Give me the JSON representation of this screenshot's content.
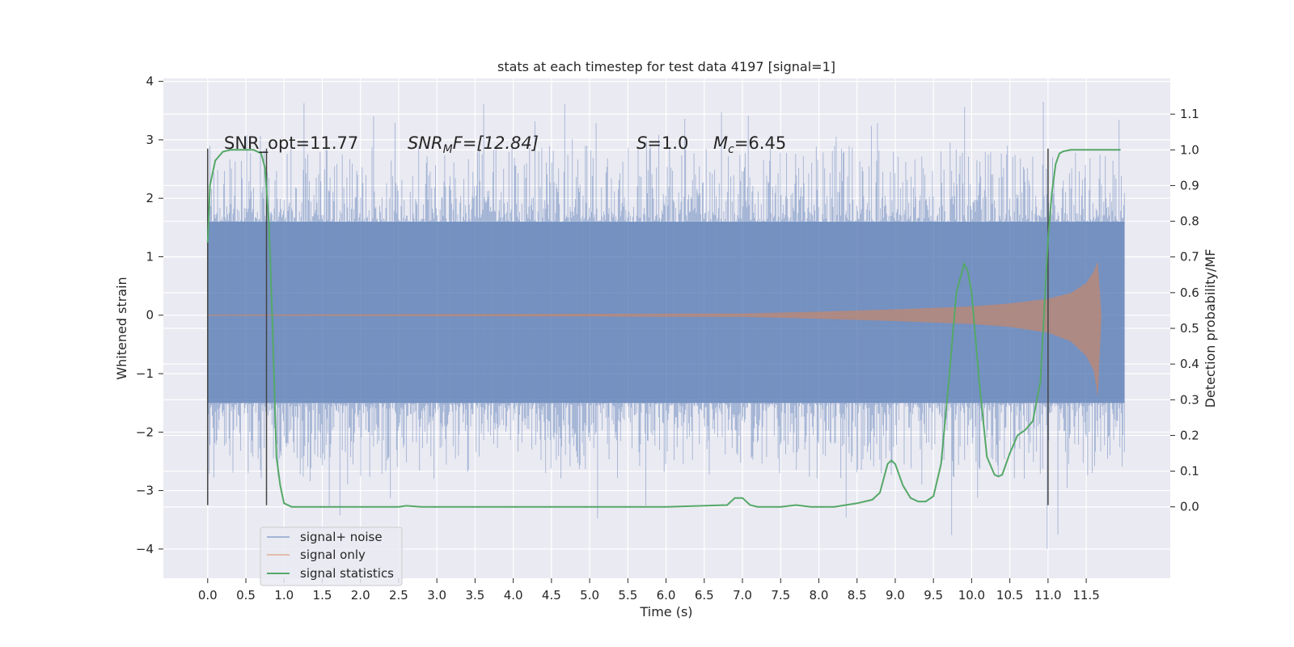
{
  "chart_data": {
    "type": "line",
    "title": "stats at each timestep for test data 4197 [signal=1]",
    "xlabel": "Time (s)",
    "ylabel_left": "Whitened strain",
    "ylabel_right": "Detection probability/MF",
    "xlim": [
      -0.58,
      12.6
    ],
    "ylim_left": [
      -4.5,
      4.05
    ],
    "ylim_right": [
      -0.2,
      1.2
    ],
    "xticks": [
      0.0,
      0.5,
      1.0,
      1.5,
      2.0,
      2.5,
      3.0,
      3.5,
      4.0,
      4.5,
      5.0,
      5.5,
      6.0,
      6.5,
      7.0,
      7.5,
      8.0,
      8.5,
      9.0,
      9.5,
      10.0,
      10.5,
      11.0,
      11.5
    ],
    "xtick_labels": [
      "0.0",
      "0.5",
      "1.0",
      "1.5",
      "2.0",
      "2.5",
      "3.0",
      "3.5",
      "4.0",
      "4.5",
      "5.0",
      "5.5",
      "6.0",
      "6.5",
      "7.0",
      "7.5",
      "8.0",
      "8.5",
      "9.0",
      "9.5",
      "10.0",
      "10.5",
      "11.0",
      "11.5"
    ],
    "yticks_left": [
      4,
      3,
      2,
      1,
      0,
      -1,
      -2,
      -3,
      -4
    ],
    "ytick_labels_left": [
      "4",
      "3",
      "2",
      "1",
      "0",
      "−1",
      "−2",
      "−3",
      "−4"
    ],
    "yticks_right": [
      1.1,
      1.0,
      0.9,
      0.8,
      0.7,
      0.6,
      0.5,
      0.4,
      0.3,
      0.2,
      0.1,
      0.0
    ],
    "ytick_labels_right": [
      "1.1",
      "1.0",
      "0.9",
      "0.8",
      "0.7",
      "0.6",
      "0.5",
      "0.4",
      "0.3",
      "0.2",
      "0.1",
      "0.0"
    ],
    "grid": true,
    "legend_position": "lower-left",
    "series": [
      {
        "name": "signal+ noise",
        "color": "#4c72b0",
        "axis": "left",
        "envelope": {
          "t": [
            0.0,
            12.0
          ],
          "upper": 1.6,
          "lower": -1.5
        },
        "note_values": "dense noise, samples roughly within ±1.6 with spikes up to ±3.7"
      },
      {
        "name": "signal only",
        "color": "#dd8452",
        "axis": "left",
        "envelope": {
          "t": [
            0.0,
            4.0,
            7.0,
            8.0,
            9.0,
            10.0,
            10.5,
            11.0,
            11.3,
            11.5,
            11.6,
            11.65,
            11.7,
            12.0
          ],
          "upper": [
            0.01,
            0.02,
            0.03,
            0.06,
            0.1,
            0.15,
            0.2,
            0.28,
            0.38,
            0.55,
            0.75,
            0.92,
            0.0,
            0.0
          ],
          "lower": [
            -0.01,
            -0.02,
            -0.03,
            -0.06,
            -0.1,
            -0.15,
            -0.2,
            -0.3,
            -0.45,
            -0.7,
            -0.95,
            -1.4,
            0.0,
            0.0
          ]
        }
      },
      {
        "name": "signal statistics",
        "color": "#55a868",
        "axis": "right",
        "x": [
          0.0,
          0.03,
          0.1,
          0.2,
          0.3,
          0.4,
          0.5,
          0.6,
          0.7,
          0.75,
          0.8,
          0.85,
          0.9,
          0.95,
          1.0,
          1.1,
          2.0,
          2.5,
          2.6,
          2.8,
          3.0,
          6.0,
          6.8,
          6.9,
          7.0,
          7.1,
          7.2,
          7.5,
          7.7,
          7.9,
          8.2,
          8.5,
          8.7,
          8.8,
          8.9,
          8.95,
          9.0,
          9.1,
          9.2,
          9.3,
          9.4,
          9.5,
          9.6,
          9.7,
          9.8,
          9.9,
          9.95,
          10.0,
          10.1,
          10.2,
          10.3,
          10.35,
          10.4,
          10.5,
          10.6,
          10.7,
          10.8,
          10.9,
          11.0,
          11.05,
          11.1,
          11.15,
          11.2,
          11.3,
          11.5,
          11.95
        ],
        "y": [
          0.74,
          0.9,
          0.97,
          0.995,
          1.0,
          1.0,
          1.0,
          1.0,
          0.99,
          0.95,
          0.8,
          0.5,
          0.14,
          0.06,
          0.01,
          0.0,
          0.0,
          0.0,
          0.003,
          0.0,
          0.0,
          0.0,
          0.005,
          0.025,
          0.025,
          0.005,
          0.0,
          0.0,
          0.005,
          0.0,
          0.0,
          0.01,
          0.02,
          0.04,
          0.12,
          0.13,
          0.12,
          0.06,
          0.025,
          0.015,
          0.015,
          0.03,
          0.12,
          0.35,
          0.6,
          0.68,
          0.66,
          0.6,
          0.35,
          0.14,
          0.09,
          0.085,
          0.09,
          0.15,
          0.2,
          0.215,
          0.24,
          0.35,
          0.75,
          0.88,
          0.96,
          0.99,
          0.996,
          1.0,
          1.0,
          1.0
        ]
      }
    ],
    "vlines": [
      0.0,
      0.77,
      11.0
    ],
    "vlines_range_left": [
      -3.25,
      2.85
    ],
    "annotations": {
      "snr_opt": "SNR_opt=11.77",
      "snr_mf_sym": "SNR",
      "snr_mf_sub": "M",
      "snr_mf_rest": "F=[12.84]",
      "s_sym": "S",
      "s_val": "=1.0",
      "mc_sym": "M",
      "mc_sub": "c",
      "mc_val": "=6.45"
    },
    "colors": {
      "axes_bg": "#eaeaf2",
      "grid": "#ffffff",
      "vline": "#444444",
      "text": "#262626"
    }
  }
}
